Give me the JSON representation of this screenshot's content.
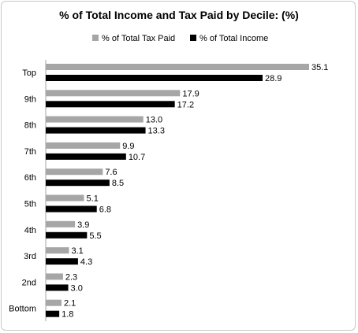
{
  "chart_data": {
    "type": "bar",
    "orientation": "horizontal",
    "title": "% of Total Income and Tax Paid by Decile:  (%)",
    "categories": [
      "Top",
      "9th",
      "8th",
      "7th",
      "6th",
      "5th",
      "4th",
      "3rd",
      "2nd",
      "Bottom"
    ],
    "series": [
      {
        "name": "% of Total Tax Paid",
        "color": "#a6a6a6",
        "values": [
          35.1,
          17.9,
          13.0,
          9.9,
          7.6,
          5.1,
          3.9,
          3.1,
          2.3,
          2.1
        ],
        "labels": [
          "35.1",
          "17.9",
          "13.0",
          "9.9",
          "7.6",
          "5.1",
          "3.9",
          "3.1",
          "2.3",
          "2.1"
        ]
      },
      {
        "name": "% of Total Income",
        "color": "#000000",
        "values": [
          28.9,
          17.2,
          13.3,
          10.7,
          8.5,
          6.8,
          5.5,
          4.3,
          3.0,
          1.8
        ],
        "labels": [
          "28.9",
          "17.2",
          "13.3",
          "10.7",
          "8.5",
          "6.8",
          "5.5",
          "4.3",
          "3.0",
          "1.8"
        ]
      }
    ],
    "xlim": [
      0,
      35.1
    ],
    "legend_position": "top",
    "grid": false,
    "axis_line_color": "#a6a6a6"
  }
}
